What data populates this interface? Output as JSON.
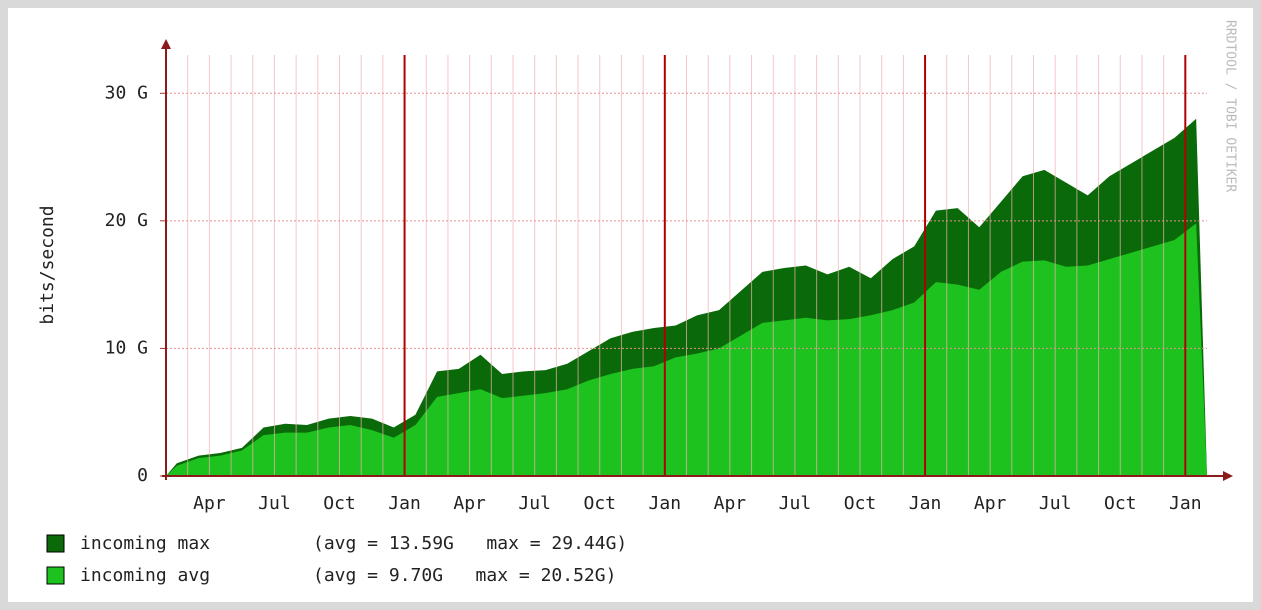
{
  "chart_data": {
    "type": "area",
    "y_label": "bits/second",
    "watermark": "RRDTOOL / TOBI OETIKER",
    "categories": [
      null,
      null,
      "Apr",
      null,
      null,
      "Jul",
      null,
      null,
      "Oct",
      null,
      null,
      "Jan",
      null,
      null,
      "Apr",
      null,
      null,
      "Jul",
      null,
      null,
      "Oct",
      null,
      null,
      "Jan",
      null,
      null,
      "Apr",
      null,
      null,
      "Jul",
      null,
      null,
      "Oct",
      null,
      null,
      "Jan",
      null,
      null,
      "Apr",
      null,
      null,
      "Jul",
      null,
      null,
      "Oct",
      null,
      null,
      "Jan"
    ],
    "series": [
      {
        "name": "incoming max",
        "stats": "(avg = 13.59G   max = 29.44G)",
        "color": "#0a6a0a",
        "values": [
          1.0,
          1.6,
          1.8,
          2.2,
          3.8,
          4.1,
          4.0,
          4.5,
          4.7,
          4.5,
          3.8,
          4.8,
          8.2,
          8.4,
          9.5,
          8.0,
          8.2,
          8.3,
          8.8,
          9.8,
          10.8,
          11.3,
          11.6,
          11.8,
          12.6,
          13.0,
          14.5,
          16.0,
          16.3,
          16.5,
          15.8,
          16.4,
          15.5,
          17.0,
          18.0,
          20.8,
          21.0,
          19.5,
          21.5,
          23.5,
          24.0,
          23.0,
          22.0,
          23.5,
          24.5,
          25.5,
          26.5,
          28.0
        ]
      },
      {
        "name": "incoming avg",
        "stats": "(avg = 9.70G   max = 20.52G)",
        "color": "#1ec21e",
        "values": [
          0.8,
          1.4,
          1.6,
          2.0,
          3.2,
          3.4,
          3.4,
          3.8,
          4.0,
          3.6,
          3.0,
          4.0,
          6.2,
          6.5,
          6.8,
          6.1,
          6.3,
          6.5,
          6.8,
          7.5,
          8.0,
          8.4,
          8.6,
          9.3,
          9.6,
          10.0,
          11.0,
          12.0,
          12.2,
          12.4,
          12.2,
          12.3,
          12.6,
          13.0,
          13.6,
          15.2,
          15.0,
          14.6,
          16.0,
          16.8,
          16.9,
          16.4,
          16.5,
          17.0,
          17.5,
          18.0,
          18.5,
          19.8
        ]
      }
    ],
    "ylim": [
      0,
      33
    ],
    "yticks": [
      {
        "value": 0,
        "label": "0"
      },
      {
        "value": 10,
        "label": "10 G"
      },
      {
        "value": 20,
        "label": "20 G"
      },
      {
        "value": 30,
        "label": "30 G"
      }
    ],
    "grid": true
  }
}
